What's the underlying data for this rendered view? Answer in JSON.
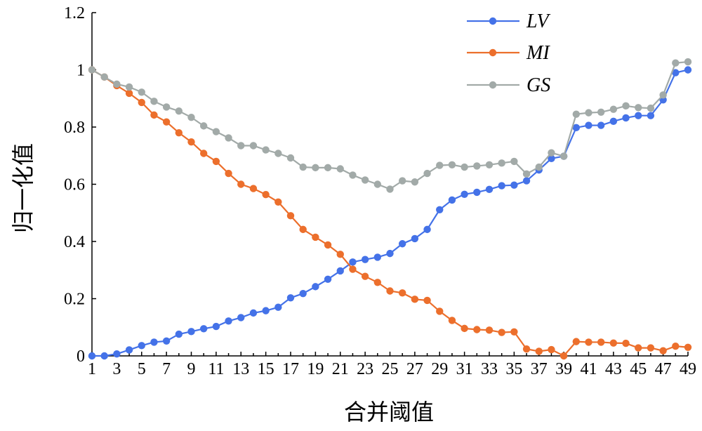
{
  "chart_data": {
    "type": "line",
    "xlabel": "合并阈值",
    "ylabel": "归一化值",
    "ylim": [
      0,
      1.2
    ],
    "xlim": [
      1,
      49
    ],
    "y_ticks": [
      "0",
      "0.2",
      "0.4",
      "0.6",
      "0.8",
      "1",
      "1.2"
    ],
    "x_ticks": [
      "1",
      "3",
      "5",
      "7",
      "9",
      "11",
      "13",
      "15",
      "17",
      "19",
      "21",
      "23",
      "25",
      "27",
      "29",
      "31",
      "33",
      "35",
      "37",
      "39",
      "41",
      "43",
      "45",
      "47",
      "49"
    ],
    "grid": false,
    "legend_position": "top-right",
    "x": [
      1,
      2,
      3,
      4,
      5,
      6,
      7,
      8,
      9,
      10,
      11,
      12,
      13,
      14,
      15,
      16,
      17,
      18,
      19,
      20,
      21,
      22,
      23,
      24,
      25,
      26,
      27,
      28,
      29,
      30,
      31,
      32,
      33,
      34,
      35,
      36,
      37,
      38,
      39,
      40,
      41,
      42,
      43,
      44,
      45,
      46,
      47,
      48,
      49
    ],
    "series": [
      {
        "name": "LV",
        "color": "#4472e8",
        "values": [
          0,
          0,
          0.007,
          0.021,
          0.036,
          0.048,
          0.052,
          0.076,
          0.085,
          0.095,
          0.103,
          0.122,
          0.134,
          0.15,
          0.158,
          0.17,
          0.203,
          0.218,
          0.242,
          0.268,
          0.297,
          0.328,
          0.337,
          0.345,
          0.358,
          0.392,
          0.41,
          0.442,
          0.511,
          0.545,
          0.565,
          0.572,
          0.582,
          0.595,
          0.597,
          0.612,
          0.65,
          0.69,
          0.698,
          0.798,
          0.806,
          0.806,
          0.82,
          0.832,
          0.84,
          0.84,
          0.895,
          0.99,
          1.0
        ]
      },
      {
        "name": "MI",
        "color": "#ec6f2c",
        "values": [
          1.0,
          0.975,
          0.945,
          0.918,
          0.886,
          0.842,
          0.818,
          0.78,
          0.748,
          0.708,
          0.68,
          0.638,
          0.6,
          0.585,
          0.564,
          0.538,
          0.49,
          0.442,
          0.415,
          0.388,
          0.355,
          0.303,
          0.278,
          0.257,
          0.227,
          0.22,
          0.198,
          0.194,
          0.156,
          0.124,
          0.096,
          0.092,
          0.09,
          0.082,
          0.084,
          0.024,
          0.016,
          0.022,
          0.0,
          0.05,
          0.048,
          0.048,
          0.045,
          0.044,
          0.028,
          0.028,
          0.018,
          0.034,
          0.03
        ]
      },
      {
        "name": "GS",
        "color": "#a2aaa8",
        "values": [
          1.0,
          0.975,
          0.95,
          0.94,
          0.922,
          0.89,
          0.87,
          0.856,
          0.834,
          0.804,
          0.784,
          0.762,
          0.735,
          0.735,
          0.72,
          0.708,
          0.692,
          0.66,
          0.658,
          0.658,
          0.654,
          0.632,
          0.615,
          0.6,
          0.583,
          0.612,
          0.608,
          0.638,
          0.666,
          0.668,
          0.66,
          0.664,
          0.668,
          0.674,
          0.68,
          0.636,
          0.66,
          0.71,
          0.698,
          0.845,
          0.85,
          0.852,
          0.862,
          0.874,
          0.868,
          0.866,
          0.912,
          1.024,
          1.028
        ]
      }
    ]
  }
}
